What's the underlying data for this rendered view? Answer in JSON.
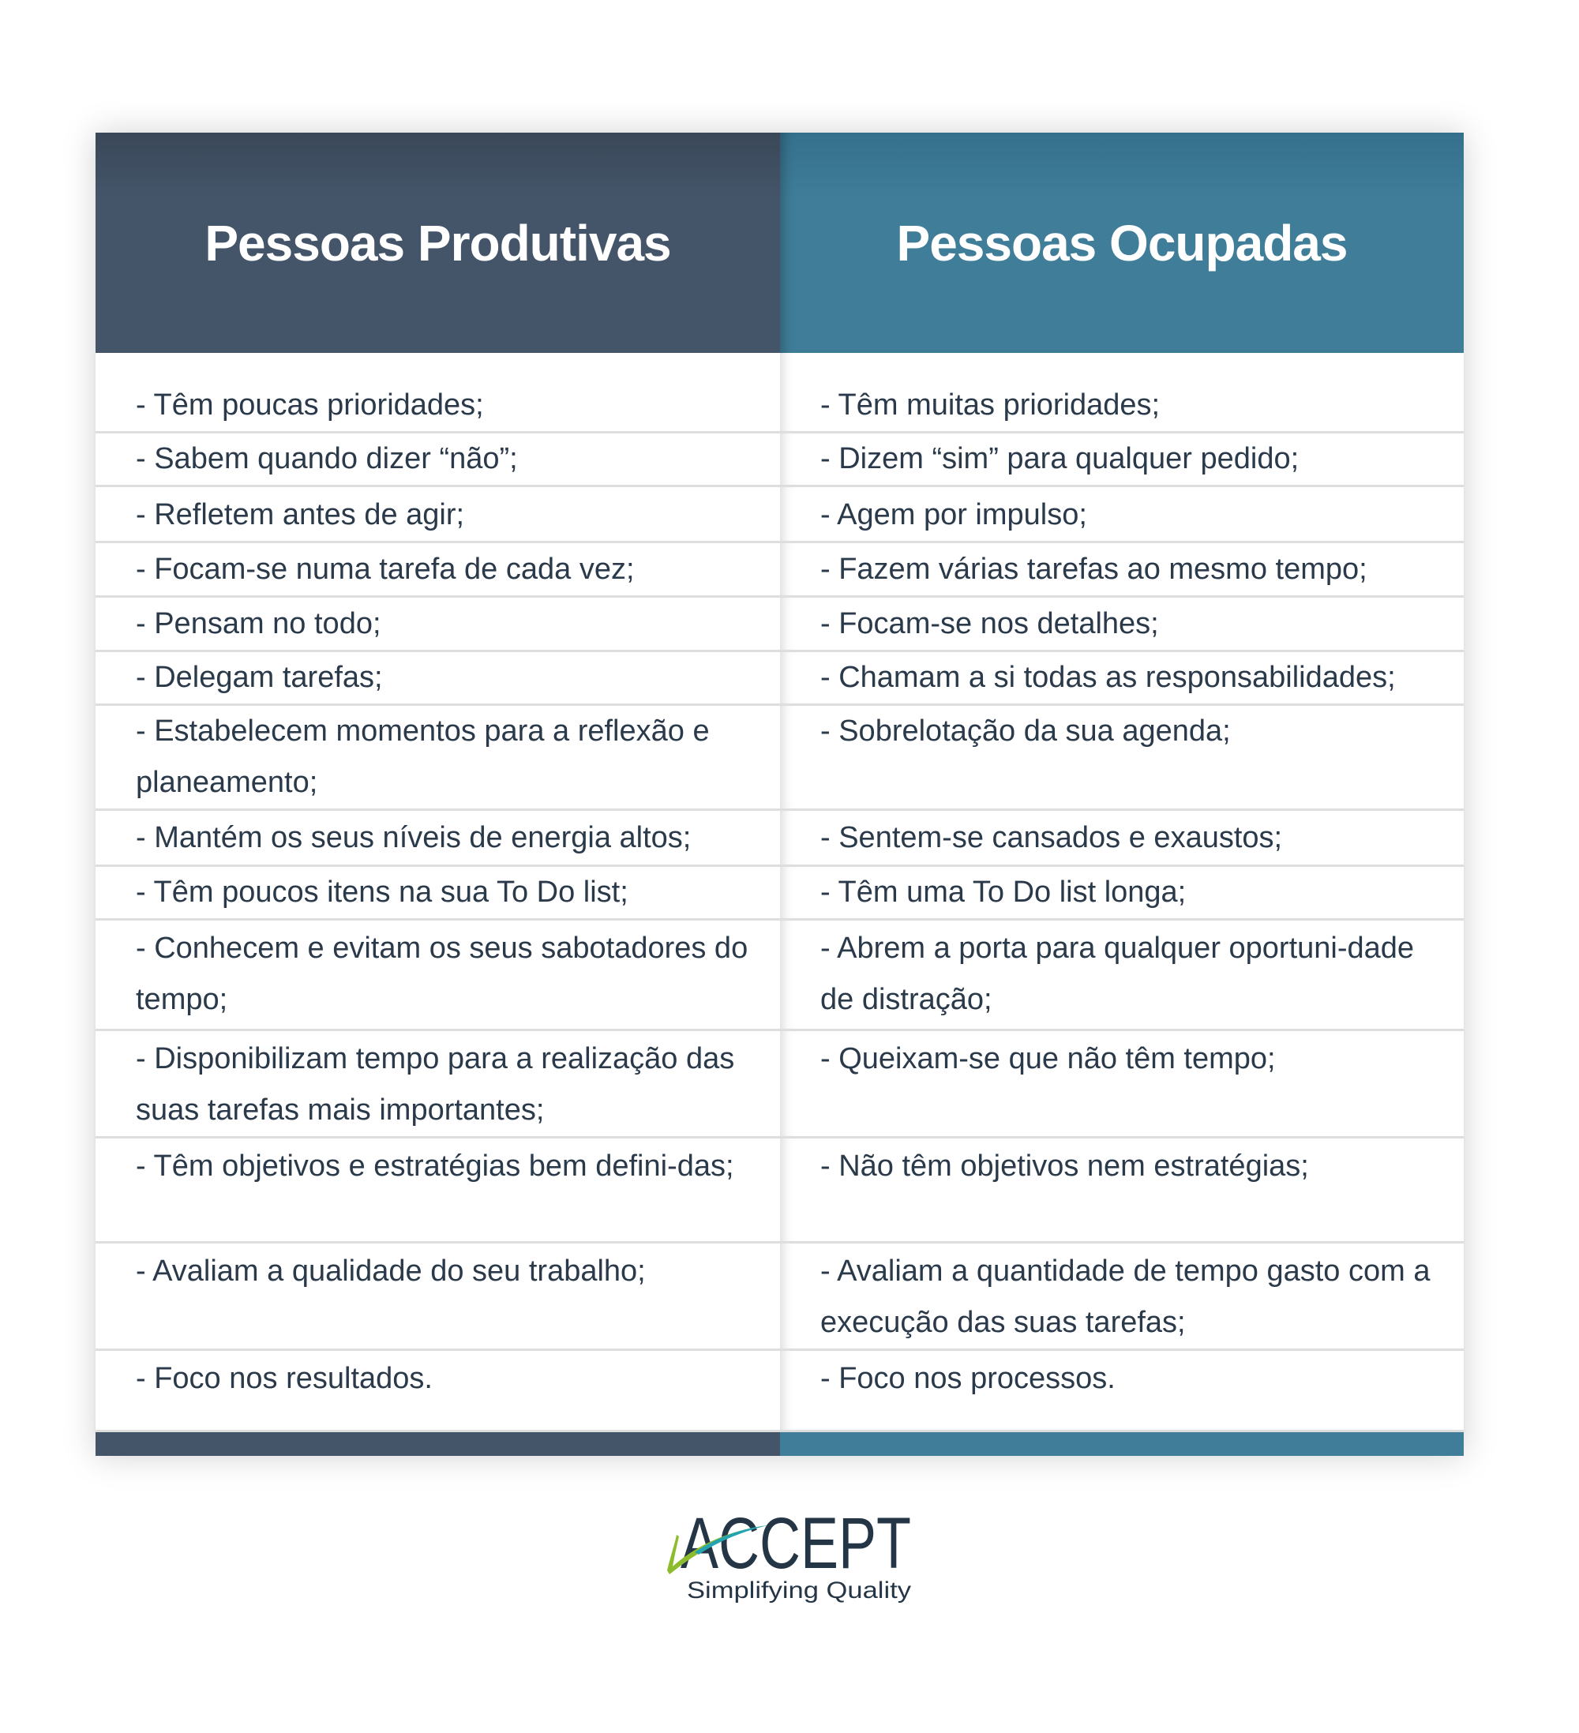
{
  "headers": {
    "left": "Pessoas Produtivas",
    "right": "Pessoas Ocupadas"
  },
  "colors": {
    "left_header": "#44556a",
    "right_header": "#3f7d98",
    "text": "#2b3a4a",
    "logo_dark": "#243646",
    "logo_green": "#8cbb2c",
    "logo_teal": "#24a3b0"
  },
  "rows": [
    {
      "left": "- Têm poucas prioridades;",
      "right": "- Têm muitas prioridades;"
    },
    {
      "left": "- Sabem quando dizer “não”;",
      "right": "- Dizem “sim” para qualquer pedido;"
    },
    {
      "left": "- Refletem antes de agir;",
      "right": "- Agem por impulso;"
    },
    {
      "left": "- Focam-se numa tarefa de cada vez;",
      "right": "- Fazem várias tarefas ao mesmo tempo;"
    },
    {
      "left": "- Pensam no todo;",
      "right": "- Focam-se nos detalhes;"
    },
    {
      "left": "- Delegam tarefas;",
      "right": "- Chamam a si todas as responsabilidades;"
    },
    {
      "left": "- Estabelecem momentos para a reflexão e planeamento;",
      "right": "- Sobrelotação da sua agenda;"
    },
    {
      "left": "- Mantém os seus níveis de energia altos;",
      "right": "- Sentem-se cansados e exaustos;"
    },
    {
      "left": "- Têm poucos itens na sua To Do list;",
      "right": "- Têm uma To Do list longa;"
    },
    {
      "left": "- Conhecem e evitam os seus sabotadores do tempo;",
      "right": "- Abrem a porta para qualquer oportuni-dade de distração;"
    },
    {
      "left": "- Disponibilizam tempo para a realização das suas tarefas mais importantes;",
      "right": "- Queixam-se que não têm tempo;"
    },
    {
      "left": "- Têm objetivos e estratégias bem defini-das;",
      "right": "- Não têm objetivos nem estratégias;"
    },
    {
      "left": "- Avaliam a qualidade do seu trabalho;",
      "right": "- Avaliam a quantidade de tempo gasto com a execução das suas tarefas;"
    },
    {
      "left": "- Foco nos resultados.",
      "right": "- Foco nos processos."
    }
  ],
  "logo": {
    "name": "ACCEPT",
    "tagline": "Simplifying Quality"
  }
}
